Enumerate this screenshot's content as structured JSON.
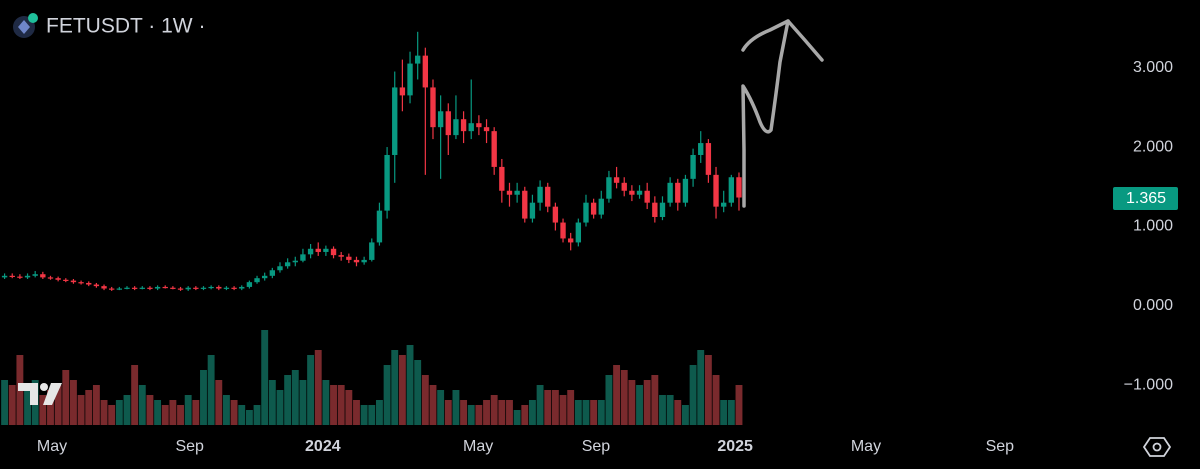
{
  "chart_data": {
    "type": "candlestick",
    "title": "FETUSDT · 1W ·",
    "up_color": "#089981",
    "down_color": "#f23645",
    "volume_up_color": "#0e5a4d",
    "volume_down_color": "#7a2a2d",
    "xlim": [
      -0.6,
      144.5
    ],
    "xticks": [
      {
        "value": 6.2,
        "label": "May"
      },
      {
        "value": 24.2,
        "label": "Sep"
      },
      {
        "value": 41.6,
        "label": "2024"
      },
      {
        "value": 61.9,
        "label": "May"
      },
      {
        "value": 77.3,
        "label": "Sep"
      },
      {
        "value": 95.5,
        "label": "2025"
      },
      {
        "value": 112.6,
        "label": "May"
      },
      {
        "value": 130.1,
        "label": "Sep"
      }
    ],
    "ylim": [
      -1.56,
      3.85
    ],
    "yticks": [
      {
        "value": 3,
        "label": "3.000"
      },
      {
        "value": 2,
        "label": "2.000"
      },
      {
        "value": 1,
        "label": "1.000"
      },
      {
        "value": 0,
        "label": "0.000"
      },
      {
        "value": -1,
        "label": "−1.000"
      }
    ],
    "open": [
      0.36,
      0.38,
      0.37,
      0.36,
      0.38,
      0.4,
      0.36,
      0.35,
      0.33,
      0.32,
      0.3,
      0.29,
      0.27,
      0.25,
      0.22,
      0.21,
      0.22,
      0.23,
      0.22,
      0.23,
      0.22,
      0.24,
      0.23,
      0.22,
      0.21,
      0.23,
      0.22,
      0.23,
      0.24,
      0.22,
      0.23,
      0.22,
      0.24,
      0.3,
      0.35,
      0.38,
      0.45,
      0.5,
      0.55,
      0.57,
      0.65,
      0.72,
      0.68,
      0.72,
      0.64,
      0.62,
      0.58,
      0.55,
      0.58,
      0.8,
      1.2,
      1.9,
      2.75,
      2.65,
      3.05,
      3.15,
      2.75,
      2.25,
      2.45,
      2.15,
      2.35,
      2.2,
      2.3,
      2.25,
      2.2,
      1.75,
      1.45,
      1.4,
      1.45,
      1.1,
      1.3,
      1.5,
      1.25,
      1.05,
      0.85,
      0.8,
      1.05,
      1.3,
      1.15,
      1.35,
      1.62,
      1.55,
      1.45,
      1.4,
      1.45,
      1.3,
      1.12,
      1.3,
      1.55,
      1.3,
      1.6,
      1.9,
      2.05,
      1.65,
      1.25,
      1.3,
      1.62
    ],
    "high": [
      0.41,
      0.41,
      0.4,
      0.41,
      0.44,
      0.43,
      0.38,
      0.37,
      0.35,
      0.34,
      0.32,
      0.31,
      0.29,
      0.27,
      0.24,
      0.24,
      0.25,
      0.25,
      0.25,
      0.25,
      0.26,
      0.26,
      0.25,
      0.24,
      0.25,
      0.25,
      0.25,
      0.26,
      0.26,
      0.25,
      0.25,
      0.26,
      0.32,
      0.38,
      0.42,
      0.48,
      0.55,
      0.6,
      0.62,
      0.72,
      0.78,
      0.8,
      0.76,
      0.75,
      0.68,
      0.66,
      0.62,
      0.62,
      0.85,
      1.3,
      2.0,
      2.95,
      3.1,
      3.2,
      3.45,
      3.25,
      2.85,
      2.65,
      2.55,
      2.65,
      2.45,
      2.85,
      2.4,
      2.35,
      2.25,
      1.85,
      1.55,
      1.55,
      1.5,
      1.4,
      1.58,
      1.55,
      1.3,
      1.1,
      0.92,
      1.1,
      1.4,
      1.35,
      1.45,
      1.7,
      1.75,
      1.62,
      1.52,
      1.52,
      1.55,
      1.38,
      1.38,
      1.62,
      1.6,
      1.65,
      1.98,
      2.2,
      2.1,
      1.75,
      1.45,
      1.65,
      1.68
    ],
    "low": [
      0.34,
      0.35,
      0.34,
      0.34,
      0.36,
      0.34,
      0.33,
      0.31,
      0.3,
      0.28,
      0.27,
      0.25,
      0.23,
      0.2,
      0.19,
      0.2,
      0.21,
      0.2,
      0.21,
      0.2,
      0.2,
      0.22,
      0.21,
      0.19,
      0.19,
      0.2,
      0.2,
      0.21,
      0.2,
      0.2,
      0.2,
      0.2,
      0.22,
      0.28,
      0.32,
      0.35,
      0.42,
      0.47,
      0.5,
      0.55,
      0.6,
      0.63,
      0.63,
      0.6,
      0.57,
      0.54,
      0.5,
      0.52,
      0.56,
      0.76,
      1.1,
      1.55,
      2.45,
      2.55,
      2.85,
      1.65,
      2.1,
      1.6,
      1.9,
      2.1,
      2.05,
      2.1,
      2.15,
      2.05,
      1.65,
      1.3,
      1.25,
      1.3,
      1.05,
      1.05,
      1.2,
      1.18,
      0.95,
      0.8,
      0.7,
      0.75,
      1.0,
      1.1,
      1.1,
      1.3,
      1.48,
      1.38,
      1.32,
      1.35,
      1.22,
      1.05,
      1.08,
      1.25,
      1.2,
      1.25,
      1.5,
      1.8,
      1.55,
      1.1,
      1.18,
      1.25,
      1.2
    ],
    "close": [
      0.38,
      0.37,
      0.36,
      0.38,
      0.4,
      0.36,
      0.35,
      0.33,
      0.32,
      0.3,
      0.29,
      0.27,
      0.25,
      0.22,
      0.21,
      0.22,
      0.23,
      0.22,
      0.23,
      0.22,
      0.24,
      0.23,
      0.22,
      0.21,
      0.23,
      0.22,
      0.23,
      0.24,
      0.22,
      0.23,
      0.22,
      0.24,
      0.3,
      0.35,
      0.38,
      0.45,
      0.5,
      0.55,
      0.57,
      0.65,
      0.72,
      0.68,
      0.72,
      0.64,
      0.62,
      0.58,
      0.55,
      0.58,
      0.8,
      1.2,
      1.9,
      2.75,
      2.65,
      3.05,
      3.15,
      2.75,
      2.25,
      2.45,
      2.15,
      2.35,
      2.2,
      2.3,
      2.25,
      2.2,
      1.75,
      1.45,
      1.4,
      1.45,
      1.1,
      1.3,
      1.5,
      1.25,
      1.05,
      0.85,
      0.8,
      1.05,
      1.3,
      1.15,
      1.35,
      1.62,
      1.55,
      1.45,
      1.4,
      1.45,
      1.3,
      1.12,
      1.3,
      1.55,
      1.3,
      1.6,
      1.9,
      2.05,
      1.65,
      1.25,
      1.3,
      1.62,
      1.365
    ],
    "volume": [
      45,
      40,
      70,
      40,
      45,
      30,
      35,
      40,
      55,
      45,
      30,
      35,
      40,
      25,
      20,
      25,
      30,
      60,
      40,
      30,
      25,
      20,
      25,
      20,
      30,
      25,
      55,
      70,
      45,
      30,
      25,
      20,
      15,
      20,
      95,
      45,
      35,
      50,
      55,
      45,
      70,
      75,
      45,
      40,
      40,
      35,
      25,
      20,
      20,
      25,
      60,
      75,
      70,
      80,
      65,
      50,
      40,
      35,
      25,
      35,
      25,
      20,
      20,
      25,
      30,
      25,
      25,
      15,
      20,
      25,
      40,
      35,
      35,
      30,
      35,
      25,
      25,
      25,
      25,
      50,
      60,
      55,
      45,
      40,
      45,
      50,
      30,
      30,
      25,
      20,
      60,
      75,
      70,
      50,
      25,
      25,
      40
    ]
  }
}
